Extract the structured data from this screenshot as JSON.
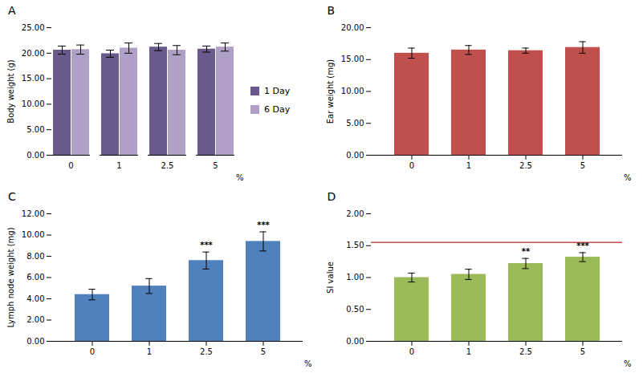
{
  "chart_data": [
    {
      "type": "bar",
      "title": "A",
      "ylabel": "Body weight (g)",
      "xlabel": "%",
      "categories": [
        "0",
        "1",
        "2.5",
        "5"
      ],
      "series": [
        {
          "name": "1 Day",
          "color": "#6a5a8c",
          "values": [
            20.6,
            19.9,
            21.2,
            20.8
          ],
          "errors": [
            0.8,
            0.7,
            0.7,
            0.6
          ]
        },
        {
          "name": "6 Day",
          "color": "#b0a0c8",
          "values": [
            20.7,
            21.0,
            20.6,
            21.2
          ],
          "errors": [
            0.9,
            1.0,
            0.9,
            0.8
          ]
        }
      ],
      "ylim": [
        0,
        25
      ],
      "yticks": [
        {
          "value": 0,
          "label": "0.00"
        },
        {
          "value": 5,
          "label": "5.00"
        },
        {
          "value": 10,
          "label": "10.00"
        },
        {
          "value": 15,
          "label": "15.00"
        },
        {
          "value": 20,
          "label": "20.00"
        },
        {
          "value": 25,
          "label": "25.00"
        }
      ],
      "legend": "right",
      "grid": false
    },
    {
      "type": "bar",
      "title": "B",
      "ylabel": "Ear weight (mg)",
      "xlabel": "%",
      "categories": [
        "0",
        "1",
        "2.5",
        "5"
      ],
      "values": [
        16.0,
        16.5,
        16.4,
        16.9
      ],
      "errors": [
        0.8,
        0.7,
        0.4,
        0.9
      ],
      "color": "#c0504d",
      "ylim": [
        0,
        20
      ],
      "yticks": [
        {
          "value": 0,
          "label": "0.00"
        },
        {
          "value": 5,
          "label": "5.00"
        },
        {
          "value": 10,
          "label": "10.00"
        },
        {
          "value": 15,
          "label": "15.00"
        },
        {
          "value": 20,
          "label": "20.00"
        }
      ],
      "grid": false
    },
    {
      "type": "bar",
      "title": "C",
      "ylabel": "Lymph node weight (mg)",
      "xlabel": "%",
      "categories": [
        "0",
        "1",
        "2.5",
        "5"
      ],
      "values": [
        4.4,
        5.2,
        7.6,
        9.4
      ],
      "errors": [
        0.5,
        0.7,
        0.8,
        0.9
      ],
      "color": "#4f81bd",
      "ylim": [
        0,
        12
      ],
      "yticks": [
        {
          "value": 0,
          "label": "0.00"
        },
        {
          "value": 2,
          "label": "2.00"
        },
        {
          "value": 4,
          "label": "4.00"
        },
        {
          "value": 6,
          "label": "6.00"
        },
        {
          "value": 8,
          "label": "8.00"
        },
        {
          "value": 10,
          "label": "10.00"
        },
        {
          "value": 12,
          "label": "12.00"
        }
      ],
      "annotations": [
        null,
        null,
        "***",
        "***"
      ],
      "grid": false
    },
    {
      "type": "bar",
      "title": "D",
      "ylabel": "SI value",
      "xlabel": "%",
      "categories": [
        "0",
        "1",
        "2.5",
        "5"
      ],
      "values": [
        1.0,
        1.05,
        1.22,
        1.32
      ],
      "errors": [
        0.07,
        0.08,
        0.08,
        0.07
      ],
      "color": "#9bbb59",
      "ylim": [
        0,
        2.0
      ],
      "yticks": [
        {
          "value": 0,
          "label": "0.00"
        },
        {
          "value": 0.5,
          "label": "0.50"
        },
        {
          "value": 1,
          "label": "1.00"
        },
        {
          "value": 1.5,
          "label": "1.50"
        },
        {
          "value": 2,
          "label": "2.00"
        }
      ],
      "hline": {
        "value": 1.55,
        "color": "#c0504d"
      },
      "annotations": [
        null,
        null,
        "**",
        "***"
      ],
      "grid": false
    }
  ]
}
